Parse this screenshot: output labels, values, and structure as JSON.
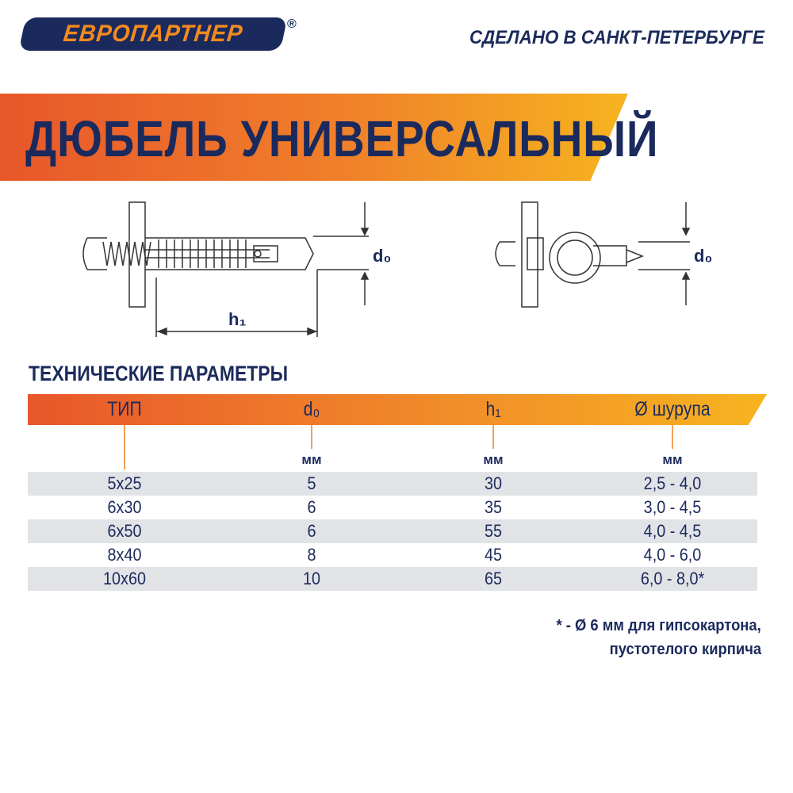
{
  "header": {
    "logo_text": "ЕВРОПАРТНЕР",
    "registered": "®",
    "tagline": "СДЕЛАНО В САНКТ-ПЕТЕРБУРГЕ"
  },
  "title": "ДЮБЕЛЬ УНИВЕРСАЛЬНЫЙ",
  "diagram": {
    "label_d0": "d₀",
    "label_h1": "h₁"
  },
  "section_title": "ТЕХНИЧЕСКИЕ ПАРАМЕТРЫ",
  "table": {
    "columns": [
      "ТИП",
      "d₀",
      "h₁",
      "Ø шурупа"
    ],
    "units": [
      "",
      "мм",
      "мм",
      "мм"
    ],
    "rows": [
      [
        "5x25",
        "5",
        "30",
        "2,5 - 4,0"
      ],
      [
        "6x30",
        "6",
        "35",
        "3,0 - 4,5"
      ],
      [
        "6x50",
        "6",
        "55",
        "4,0 - 4,5"
      ],
      [
        "8x40",
        "8",
        "45",
        "4,0 - 6,0"
      ],
      [
        "10x60",
        "10",
        "65",
        "6,0 - 8,0*"
      ]
    ]
  },
  "footnote": {
    "line1": "* - Ø 6 мм для гипсокартона,",
    "line2": "пустотелого кирпича"
  },
  "colors": {
    "navy": "#1b2a5c",
    "orange": "#e8572a",
    "yellow": "#f6b41f",
    "row_gray": "#e2e3e7"
  }
}
